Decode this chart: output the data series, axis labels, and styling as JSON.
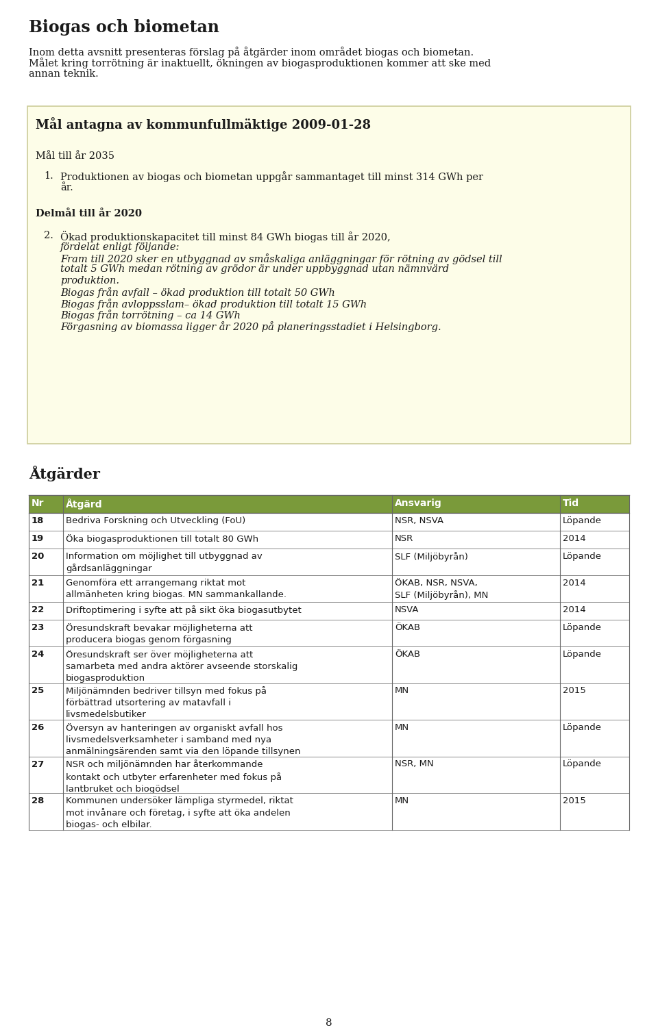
{
  "page_bg": "#ffffff",
  "title": "Biogas och biometan",
  "intro_line1": "Inom detta avsnitt presenteras förslag på åtgärder inom området biogas och biometan.",
  "intro_line2": "Målet kring torrötning är inaktuellt, ökningen av biogasproduktionen kommer att ske med",
  "intro_line3": "annan teknik.",
  "yellow_box_title": "Mål antagna av kommunfullmäktige 2009-01-28",
  "yellow_bg": "#fdfde8",
  "yellow_border": "#cccc99",
  "mal_2035_header": "Mål till år 2035",
  "item1_text": "Produktionen av biogas och biometan uppgår sammantaget till minst 314 GWh per",
  "item1_text2": "år.",
  "delmal_header": "Delmål till år 2020",
  "item2_normal": "Ökad produktionskapacitet till minst 84 GWh biogas till år 2020,",
  "item2_italic1": "fördelat enligt",
  "item2_italic2": "följande:",
  "item2_italic3": "Fram till 2020 sker en utbyggnad av småskaliga anläggningar för rötning av gödsel till",
  "item2_italic4": "totalt 5 GWh medan rötning av grödor är under uppbyggnad utan nämnvärd",
  "item2_italic5": "produktion.",
  "item2_italic6": "Biogas från avfall – ökad produktion till totalt 50 GWh",
  "item2_italic7": "Biogas från avloppsslam– ökad produktion till totalt 15 GWh",
  "item2_italic8": "Biogas från torrötning – ca 14 GWh",
  "item2_italic9": "Förgasning av biomassa ligger år 2020 på planeringsstadiet i Helsingborg.",
  "atgarder_header": "Åtgärder",
  "table_header_bg": "#7a9a3a",
  "table_header_color": "#ffffff",
  "table_header_cols": [
    "Nr",
    "Åtgärd",
    "Ansvarig",
    "Tid"
  ],
  "table_rows": [
    [
      "18",
      "Bedriva Forskning och Utveckling (FoU)",
      "NSR, NSVA",
      "Löpande"
    ],
    [
      "19",
      "Öka biogasproduktionen till totalt 80 GWh",
      "NSR",
      "2014"
    ],
    [
      "20",
      "Information om möjlighet till utbyggnad av\ngårdsanläggningar",
      "SLF (Miljöbyrån)",
      "Löpande"
    ],
    [
      "21",
      "Genomföra ett arrangemang riktat mot\nallmänheten kring biogas. MN sammankallande.",
      "ÖKAB, NSR, NSVA,\nSLF (Miljöbyrån), MN",
      "2014"
    ],
    [
      "22",
      "Driftoptimering i syfte att på sikt öka biogasutbytet",
      "NSVA",
      "2014"
    ],
    [
      "23",
      "Öresundskraft bevakar möjligheterna att\nproducera biogas genom förgasning",
      "ÖKAB",
      "Löpande"
    ],
    [
      "24",
      "Öresundskraft ser över möjligheterna att\nsamarbeta med andra aktörer avseende storskalig\nbiogasproduktion",
      "ÖKAB",
      "Löpande"
    ],
    [
      "25",
      "Miljönämnden bedriver tillsyn med fokus på\nförbättrad utsortering av matavfall i\nlivsmedelsbutiker",
      "MN",
      "2015"
    ],
    [
      "26",
      "Översyn av hanteringen av organiskt avfall hos\nlivsmedelsverksamheter i samband med nya\nanmälningsärenden samt via den löpande tillsynen",
      "MN",
      "Löpande"
    ],
    [
      "27",
      "NSR och miljönämnden har återkommande\nkontakt och utbyter erfarenheter med fokus på\nlantbruket och biogödsel",
      "NSR, MN",
      "Löpande"
    ],
    [
      "28",
      "Kommunen undersöker lämpliga styrmedel, riktat\nmot invånare och företag, i syfte att öka andelen\nbiogas- och elbilar.",
      "MN",
      "2015"
    ]
  ],
  "page_number": "8",
  "text_color": "#1a1a1a"
}
